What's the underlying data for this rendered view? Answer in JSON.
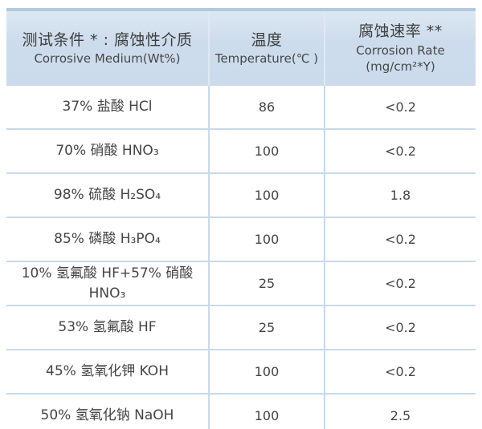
{
  "colors": {
    "header_bg": "#cddcec",
    "header_bg_top": "#dde8f3",
    "top_border": "#b2c9df",
    "bottom_border": "#a7c2d9",
    "grid_line": "#c6daec",
    "header_separator": "#dfe9f4",
    "text": "#424242",
    "background": "#ffffff"
  },
  "table": {
    "header": {
      "medium": {
        "zh": "测试条件 * : 腐蚀性介质",
        "en": "Corrosive Medium(Wt%)"
      },
      "temperature": {
        "zh": "温度",
        "en": "Temperature(℃ )"
      },
      "rate": {
        "zh": "腐蚀速率 **",
        "en": "Corrosion Rate",
        "unit": "(mg/cm²*Y)"
      }
    },
    "rows": [
      {
        "medium": "37% 盐酸 HCl",
        "temperature": "86",
        "rate": "<0.2"
      },
      {
        "medium": "70% 硝酸 HNO₃",
        "temperature": "100",
        "rate": "<0.2"
      },
      {
        "medium": "98% 硫酸 H₂SO₄",
        "temperature": "100",
        "rate": "1.8"
      },
      {
        "medium": "85% 磷酸 H₃PO₄",
        "temperature": "100",
        "rate": "<0.2"
      },
      {
        "medium": "10% 氢氟酸 HF+57% 硝酸\nHNO₃",
        "temperature": "25",
        "rate": "<0.2"
      },
      {
        "medium": "53% 氢氟酸 HF",
        "temperature": "25",
        "rate": "<0.2"
      },
      {
        "medium": "45% 氢氧化钾 KOH",
        "temperature": "100",
        "rate": "<0.2"
      },
      {
        "medium": "50% 氢氧化钠 NaOH",
        "temperature": "100",
        "rate": "2.5"
      }
    ]
  },
  "chart_data": {
    "type": "table",
    "title": "",
    "columns": [
      "测试条件 * : 腐蚀性介质 Corrosive Medium(Wt%)",
      "温度 Temperature(℃ )",
      "腐蚀速率 ** Corrosion Rate (mg/cm²*Y)"
    ],
    "rows": [
      [
        "37% 盐酸 HCl",
        "86",
        "<0.2"
      ],
      [
        "70% 硝酸 HNO₃",
        "100",
        "<0.2"
      ],
      [
        "98% 硫酸 H₂SO₄",
        "100",
        "1.8"
      ],
      [
        "85% 磷酸 H₃PO₄",
        "100",
        "<0.2"
      ],
      [
        "10% 氢氟酸 HF+57% 硝酸 HNO₃",
        "25",
        "<0.2"
      ],
      [
        "53% 氢氟酸 HF",
        "25",
        "<0.2"
      ],
      [
        "45% 氢氧化钾 KOH",
        "100",
        "<0.2"
      ],
      [
        "50% 氢氧化钠 NaOH",
        "100",
        "2.5"
      ]
    ]
  }
}
